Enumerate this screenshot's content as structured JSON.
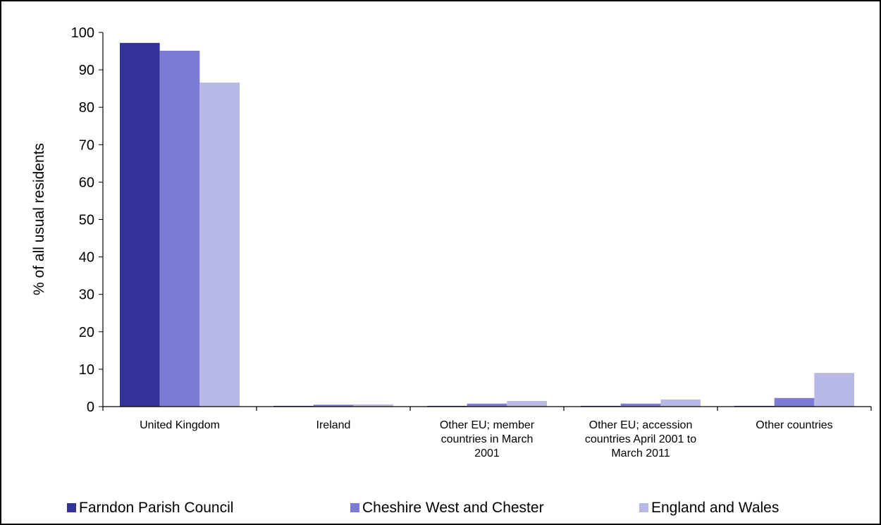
{
  "chart_data": {
    "type": "bar",
    "categories": [
      [
        "United Kingdom"
      ],
      [
        "Ireland"
      ],
      [
        "Other EU; member",
        "countries in March",
        "2001"
      ],
      [
        "Other EU; accession",
        "countries April 2001 to",
        "March 2011"
      ],
      [
        "Other countries"
      ]
    ],
    "series": [
      {
        "name": "Farndon Parish Council",
        "color": "#333399",
        "values": [
          97.2,
          0.2,
          0.2,
          0.2,
          0.2
        ]
      },
      {
        "name": "Cheshire West and Chester",
        "color": "#7b7bd4",
        "values": [
          95.1,
          0.5,
          0.8,
          0.8,
          2.3
        ]
      },
      {
        "name": "England and Wales",
        "color": "#b8b8e6",
        "values": [
          86.6,
          0.6,
          1.5,
          1.9,
          9.0
        ]
      }
    ],
    "title": "",
    "xlabel": "",
    "ylabel": "% of all usual residents",
    "ylim": [
      0,
      100
    ],
    "yticks": [
      "0",
      "10",
      "20",
      "30",
      "40",
      "50",
      "60",
      "70",
      "80",
      "90",
      "100"
    ],
    "grid": false,
    "legend": "bottom"
  }
}
